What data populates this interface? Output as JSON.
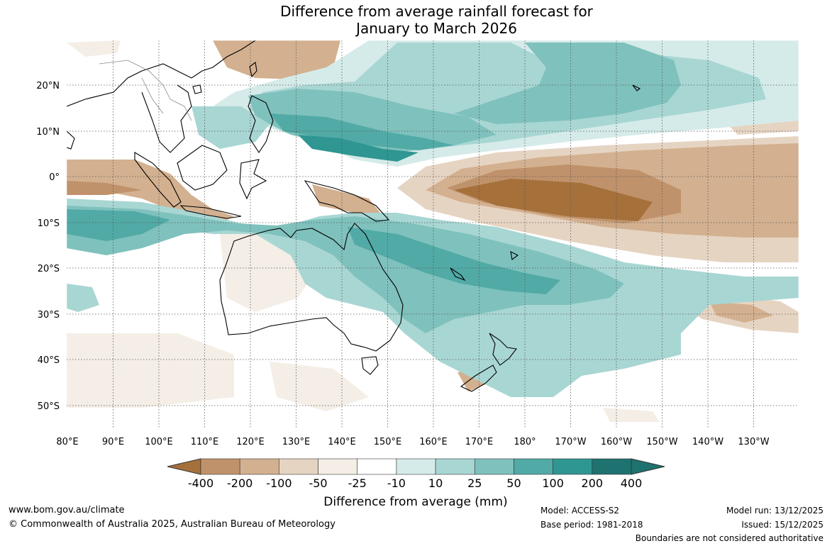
{
  "title_line1": "Difference from average rainfall forecast for",
  "title_line2": "January to March 2026",
  "map": {
    "lon_ticks": [
      "80°E",
      "90°E",
      "100°E",
      "110°E",
      "120°E",
      "130°E",
      "140°E",
      "150°E",
      "160°E",
      "170°E",
      "180°",
      "170°W",
      "160°W",
      "150°W",
      "140°W",
      "130°W"
    ],
    "lat_ticks": [
      "20°N",
      "10°N",
      "0°",
      "10°S",
      "20°S",
      "30°S",
      "40°S",
      "50°S"
    ]
  },
  "colorbar": {
    "labels": [
      "-400",
      "-200",
      "-100",
      "-50",
      "-25",
      "-10",
      "10",
      "25",
      "50",
      "100",
      "200",
      "400"
    ],
    "colors": [
      "#a5703a",
      "#c0926b",
      "#d3b08f",
      "#e6d4c3",
      "#f4eee6",
      "#ffffff",
      "#d5ebe9",
      "#a8d6d3",
      "#7fc1bd",
      "#51aaa6",
      "#2f9692",
      "#1e726f"
    ],
    "title": "Difference from average (mm)"
  },
  "footer": {
    "website": "www.bom.gov.au/climate",
    "copyright": "© Commonwealth of Australia 2025, Australian Bureau of Meteorology",
    "model": "Model: ACCESS-S2",
    "base_period": "Base period: 1981-2018",
    "model_run": "Model run: 13/12/2025",
    "issued": "Issued: 15/12/2025",
    "disclaimer": "Boundaries are not considered authoritative"
  },
  "colors": {
    "brown_dark": "#a5703a",
    "brown_mid": "#c0926b",
    "brown_light": "#d3b08f",
    "brown_pale": "#e6d4c3",
    "brown_faint": "#f4eee6",
    "teal_faint": "#d5ebe9",
    "teal_pale": "#a8d6d3",
    "teal_light": "#7fc1bd",
    "teal_mid": "#51aaa6",
    "teal_dark": "#2f9692"
  }
}
